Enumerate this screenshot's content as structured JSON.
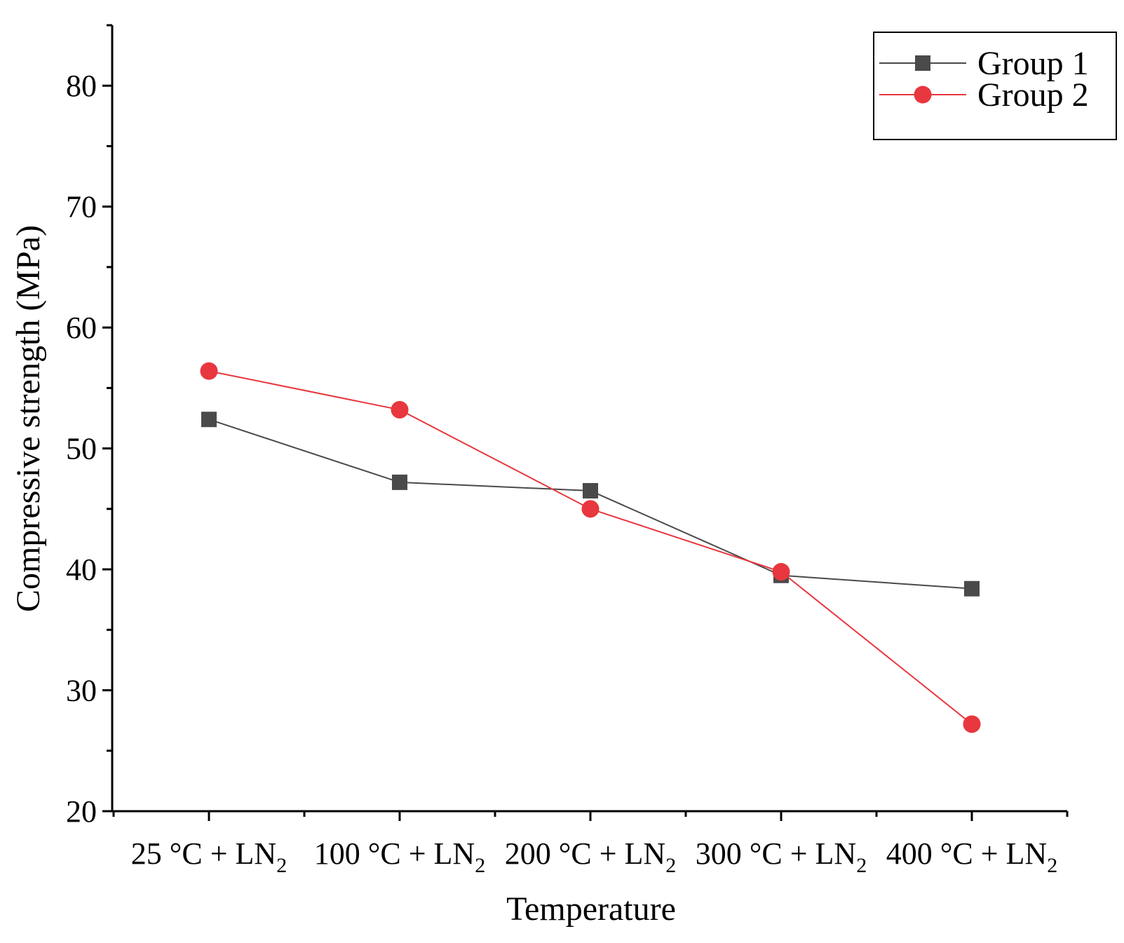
{
  "chart_data": {
    "type": "line",
    "title": "",
    "xlabel": "Temperature",
    "ylabel": "Compressive strength (MPa)",
    "ylim": [
      20,
      85
    ],
    "yticks": [
      20,
      30,
      40,
      50,
      60,
      70,
      80
    ],
    "grid": false,
    "legend_position": "top-right",
    "categories": [
      {
        "main": "25 °C + LN",
        "sub": "2"
      },
      {
        "main": "100 °C + LN",
        "sub": "2"
      },
      {
        "main": "200 °C + LN",
        "sub": "2"
      },
      {
        "main": "300 °C + LN",
        "sub": "2"
      },
      {
        "main": "400 °C + LN",
        "sub": "2"
      }
    ],
    "series": [
      {
        "name": "Group 1",
        "marker": "square",
        "color": "#4a4a4a",
        "values": [
          52.4,
          47.2,
          46.5,
          39.5,
          38.4
        ]
      },
      {
        "name": "Group 2",
        "marker": "circle",
        "color": "#e8373e",
        "values": [
          56.4,
          53.2,
          45.0,
          39.8,
          27.2
        ]
      }
    ]
  }
}
